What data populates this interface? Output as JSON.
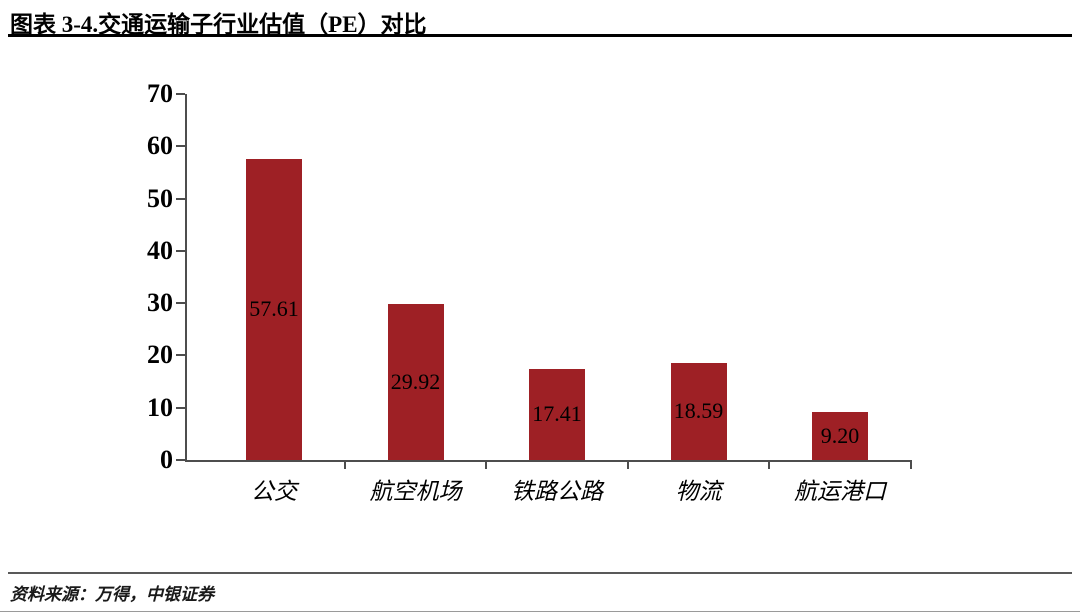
{
  "page": {
    "title": "图表 3-4.交通运输子行业估值（PE）对比",
    "source_note": "资料来源：万得，中银证券"
  },
  "chart_data": {
    "type": "bar",
    "title": "图表 3-4.交通运输子行业估值（PE）对比",
    "categories": [
      "公交",
      "航空机场",
      "铁路公路",
      "物流",
      "航运港口"
    ],
    "values": [
      57.61,
      29.92,
      17.41,
      18.59,
      9.2
    ],
    "data_labels": [
      "57.61",
      "29.92",
      "17.41",
      "18.59",
      "9.20"
    ],
    "data_label_position": "inside-center",
    "xlabel": "",
    "ylabel": "",
    "ylim": [
      0,
      70
    ],
    "y_ticks": [
      0,
      10,
      20,
      30,
      40,
      50,
      60,
      70
    ],
    "grid": false,
    "legend": "none",
    "colors": {
      "bar": "#9E2025",
      "axis": "#4D4D4D",
      "text": "#000000"
    }
  }
}
